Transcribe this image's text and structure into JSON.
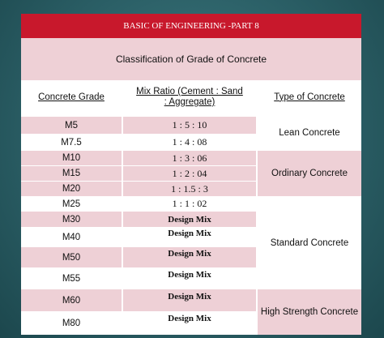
{
  "title": "BASIC OF ENGINEERING -PART 8",
  "subtitle": "Classification of Grade of Concrete",
  "headers": {
    "grade": "Concrete Grade",
    "mix_line1": "Mix Ratio (Cement : Sand",
    "mix_line2": ": Aggregate)",
    "type": "Type of Concrete"
  },
  "rows": [
    {
      "grade": "M5",
      "mix": "1 : 5 : 10"
    },
    {
      "grade": "M7.5",
      "mix": "1 : 4 : 08"
    },
    {
      "grade": "M10",
      "mix": "1 : 3 : 06"
    },
    {
      "grade": "M15",
      "mix": "1 : 2 : 04"
    },
    {
      "grade": "M20",
      "mix": "1 : 1.5 : 3"
    },
    {
      "grade": "M25",
      "mix": "1 : 1 : 02"
    },
    {
      "grade": "M30",
      "mix": "Design Mix"
    },
    {
      "grade": "M40",
      "mix": "Design Mix"
    },
    {
      "grade": "M50",
      "mix": "Design Mix"
    },
    {
      "grade": "M55",
      "mix": "Design Mix"
    },
    {
      "grade": "M60",
      "mix": "Design Mix"
    },
    {
      "grade": "M80",
      "mix": "Design Mix"
    }
  ],
  "types": [
    {
      "label": "Lean Concrete"
    },
    {
      "label": "Ordinary Concrete"
    },
    {
      "label": "Standard Concrete"
    },
    {
      "label": "High Strength Concrete"
    }
  ],
  "colors": {
    "title_bg": "#c8182c",
    "row_pink": "#eed0d6",
    "row_white": "#ffffff",
    "frame_bg": "#2b5f66"
  }
}
